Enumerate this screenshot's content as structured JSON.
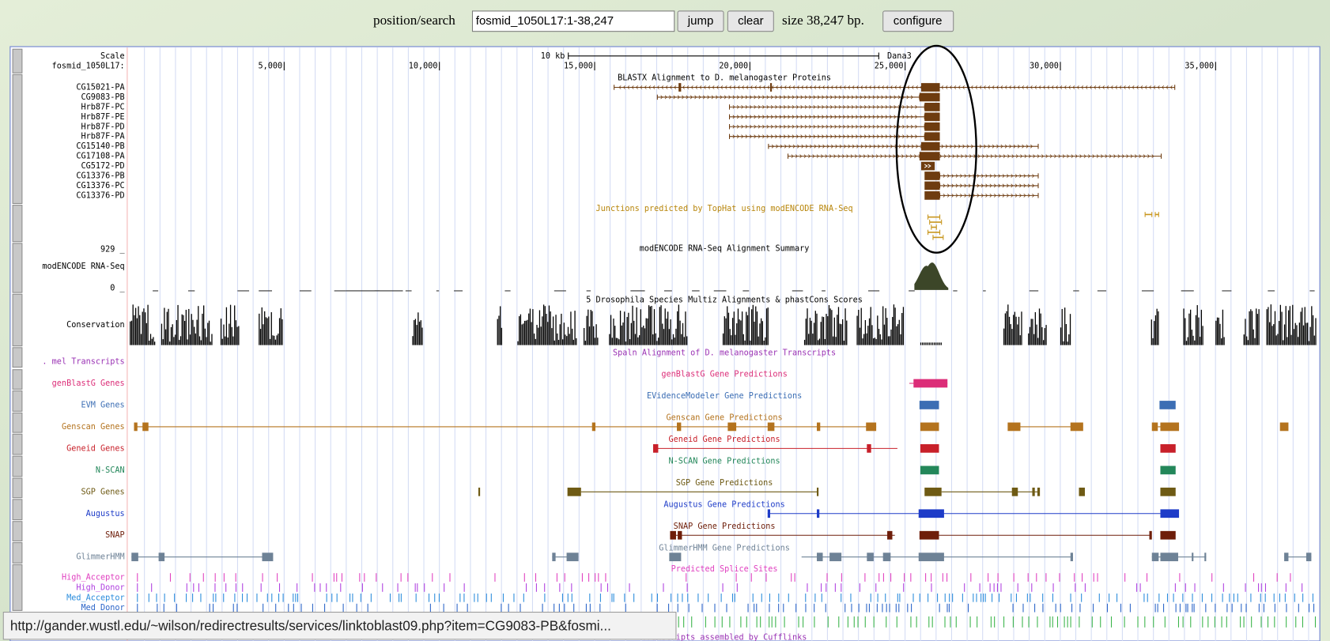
{
  "toolbar": {
    "position_label": "position/search",
    "position_value": "fosmid_1050L17:1-38,247",
    "jump": "jump",
    "clear": "clear",
    "size_text": "size 38,247 bp.",
    "configure": "configure"
  },
  "ruler": {
    "scale_label": "Scale",
    "scale_bar": "10 kb",
    "chrom_label": "fosmid_1050L17:",
    "right_label": "Dana3",
    "xlim": [
      1,
      38247
    ],
    "ticks": [
      {
        "value": 5000,
        "label": "5,000"
      },
      {
        "value": 10000,
        "label": "10,000"
      },
      {
        "value": 15000,
        "label": "15,000"
      },
      {
        "value": 20000,
        "label": "20,000"
      },
      {
        "value": 25000,
        "label": "25,000"
      },
      {
        "value": 30000,
        "label": "30,000"
      },
      {
        "value": 35000,
        "label": "35,000"
      }
    ]
  },
  "blastx": {
    "title": "BLASTX Alignment to D. melanogaster Proteins",
    "rows": [
      "CG15021-PA",
      "CG9083-PB",
      "Hrb87F-PC",
      "Hrb87F-PE",
      "Hrb87F-PD",
      "Hrb87F-PA",
      "CG15140-PB",
      "CG17108-PA",
      "CG5172-PD",
      "CG13376-PB",
      "CG13376-PC",
      "CG13376-PD"
    ]
  },
  "tophat": {
    "title": "Junctions predicted by TopHat using modENCODE RNA-Seq"
  },
  "rnaseq": {
    "title": "modENCODE RNA-Seq Alignment Summary",
    "label": "modENCODE RNA-Seq",
    "max_label": "929 _",
    "min_label": "0 _"
  },
  "conservation": {
    "title": "5 Drosophila Species Multiz Alignments & phastCons Scores",
    "label": "Conservation"
  },
  "tracks": [
    {
      "label": ". mel Transcripts",
      "title": "Spaln Alignment of D. melanogaster Transcripts",
      "color": "#9a32b4"
    },
    {
      "label": "genBlastG Genes",
      "title": "genBlastG Gene Predictions",
      "color": "#dc2d78"
    },
    {
      "label": "EVM Genes",
      "title": "EVidenceModeler Gene Predictions",
      "color": "#3c6eb4"
    },
    {
      "label": "Genscan Genes",
      "title": "Genscan Gene Predictions",
      "color": "#b4731e"
    },
    {
      "label": "Geneid Genes",
      "title": "Geneid Gene Predictions",
      "color": "#c8202a"
    },
    {
      "label": "N-SCAN",
      "title": "N-SCAN Gene Predictions",
      "color": "#23875a"
    },
    {
      "label": "SGP Genes",
      "title": "SGP Gene Predictions",
      "color": "#6e5a14"
    },
    {
      "label": "Augustus",
      "title": "Augustus Gene Predictions",
      "color": "#1e3cc8"
    },
    {
      "label": "SNAP",
      "title": "SNAP Gene Predictions",
      "color": "#6e1e0a"
    },
    {
      "label": "GlimmerHMM",
      "title": "GlimmerHMM Gene Predictions",
      "color": "#6e8296"
    }
  ],
  "splice": {
    "title": "Predicted Splice Sites",
    "rows": [
      {
        "label": "High_Acceptor",
        "color": "#e040c0"
      },
      {
        "label": "High_Donor",
        "color": "#b040e0"
      },
      {
        "label": "Med_Acceptor",
        "color": "#2a8cdc"
      },
      {
        "label": "Med_Donor",
        "color": "#2a64c8"
      }
    ]
  },
  "cufflinks": {
    "title": "Transcripts assembled by Cufflinks"
  },
  "status_url": "http://gander.wustl.edu/~wilson/redirectresults/services/linktoblast09.php?item=CG9083-PB&fosmi..."
}
